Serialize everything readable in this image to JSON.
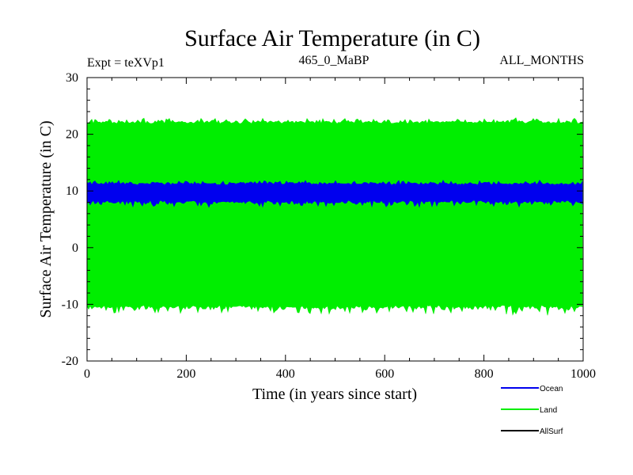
{
  "chart_data": {
    "type": "line",
    "title": "Surface Air Temperature (in C)",
    "subtitle_left": "Expt = teXVp1",
    "subtitle_center": "465_0_MaBP",
    "subtitle_right": "ALL_MONTHS",
    "xlabel": "Time (in years since start)",
    "ylabel": "Surface Air Temperature (in C)",
    "xlim": [
      0,
      1000
    ],
    "ylim": [
      -20,
      30
    ],
    "xticks": [
      0,
      200,
      400,
      600,
      800,
      1000
    ],
    "yticks": [
      -20,
      -10,
      0,
      10,
      20,
      30
    ],
    "xtick_labels": [
      "0",
      "200",
      "400",
      "600",
      "800",
      "1000"
    ],
    "ytick_labels": [
      "-20",
      "-10",
      "0",
      "10",
      "20",
      "30"
    ],
    "x_minor_step": 50,
    "y_minor_step": 2,
    "series": [
      {
        "name": "Land",
        "color": "#00ee00",
        "description": "Oscillates seasonally between roughly -11 and 22.5 C throughout the run",
        "band_low": -10.5,
        "band_high": 22.2,
        "band_low_extreme": -12,
        "band_high_extreme": 23
      },
      {
        "name": "Ocean",
        "color": "#0000ee",
        "description": "Oscillates seasonally between roughly 7.5 and 11.5 C throughout the run",
        "band_low": 8.0,
        "band_high": 11.4,
        "band_low_extreme": 7.0,
        "band_high_extreme": 12.0
      },
      {
        "name": "AllSurf",
        "color": "#000000",
        "description": "Legend entry; not visible (hidden beneath other series)"
      }
    ],
    "legend": [
      {
        "label": "Ocean",
        "color": "#0000ee"
      },
      {
        "label": "Land",
        "color": "#00ee00"
      },
      {
        "label": "AllSurf",
        "color": "#000000"
      }
    ],
    "legend_position": "bottom-right"
  }
}
